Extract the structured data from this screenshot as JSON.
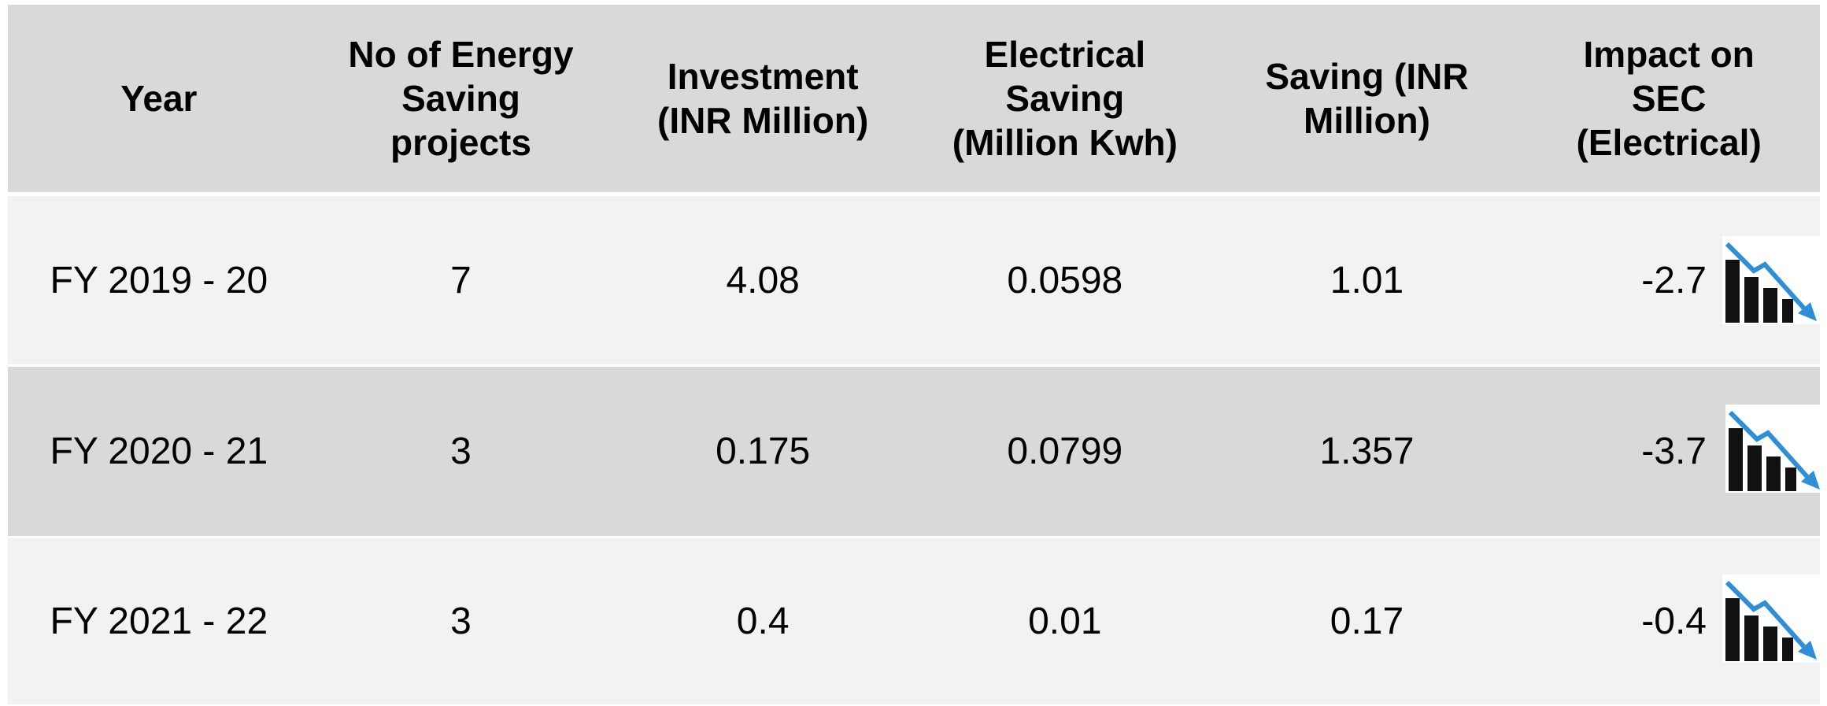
{
  "table": {
    "header": [
      "Year",
      "No of Energy\nSaving\nprojects",
      "Investment\n(INR Million)",
      "Electrical\nSaving\n(Million Kwh)",
      "Saving (INR\nMillion)",
      "Impact on\nSEC\n(Electrical)"
    ],
    "rows": [
      [
        "FY 2019 - 20",
        "7",
        "4.08",
        "0.0598",
        "1.01",
        "-2.7"
      ],
      [
        "FY 2020 - 21",
        "3",
        "0.175",
        "0.0799",
        "1.357",
        "-3.7"
      ],
      [
        "FY 2021 - 22",
        "3",
        "0.4",
        "0.01",
        "0.17",
        "-0.4"
      ]
    ]
  }
}
